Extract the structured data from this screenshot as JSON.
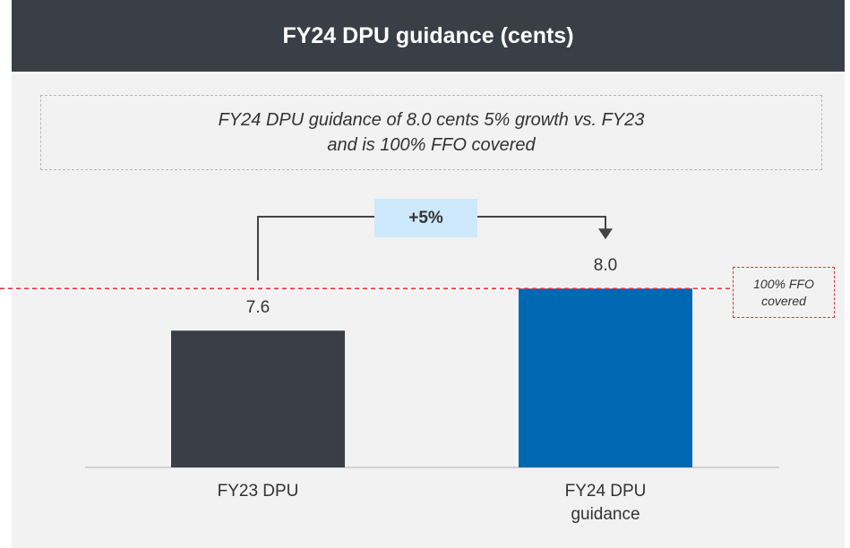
{
  "chart_data": {
    "type": "bar",
    "title": "FY24 DPU guidance (cents)",
    "annotation": [
      "FY24 DPU guidance of 8.0 cents 5% growth vs. FY23",
      "and is 100% FFO covered"
    ],
    "growth_label": "+5%",
    "side_note": [
      "100% FFO",
      "covered"
    ],
    "categories": [
      "FY23 DPU",
      "FY24 DPU guidance"
    ],
    "values": [
      7.6,
      8.0
    ],
    "value_labels": [
      "7.6",
      "8.0"
    ],
    "colors": [
      "#3a3f47",
      "#0068b3"
    ],
    "ylim": [
      6.3,
      8.3
    ]
  }
}
